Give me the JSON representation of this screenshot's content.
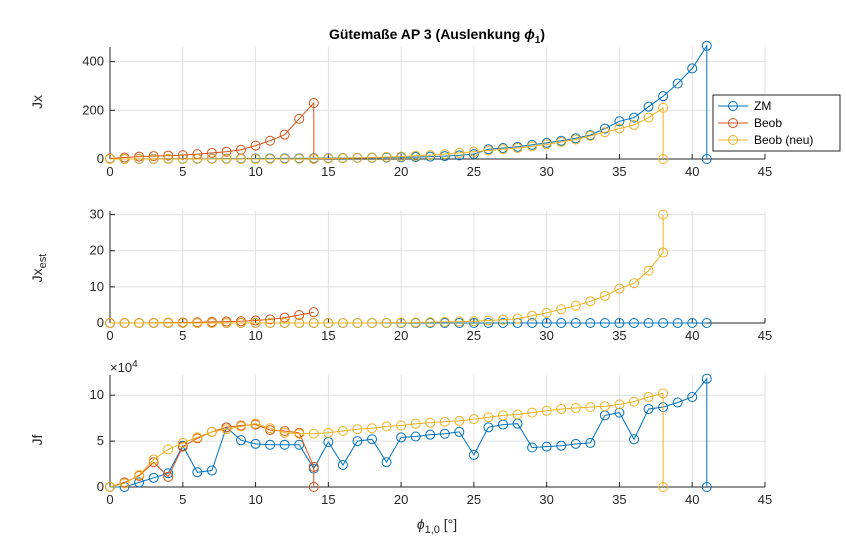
{
  "title_main": "Gütemaße AP 3 (Auslenkung ",
  "title_sym": "ϕ",
  "title_sub": "1",
  "title_end": ")",
  "chart_data": [
    {
      "type": "line",
      "ylabel": "Jx",
      "xlim": [
        0,
        45
      ],
      "ylim": [
        0,
        460
      ],
      "xticks": [
        0,
        5,
        10,
        15,
        20,
        25,
        30,
        35,
        40,
        45
      ],
      "yticks": [
        0,
        200,
        400
      ],
      "grid": true,
      "legend": {
        "position": "right",
        "entries": [
          "ZM",
          "Beob",
          "Beob (neu)"
        ]
      },
      "series": [
        {
          "name": "ZM",
          "color": "#0072BD",
          "x": [
            1,
            2,
            3,
            4,
            5,
            6,
            7,
            8,
            9,
            10,
            11,
            12,
            13,
            14,
            15,
            16,
            17,
            18,
            19,
            20,
            21,
            22,
            23,
            24,
            25,
            26,
            27,
            28,
            29,
            30,
            31,
            32,
            33,
            34,
            35,
            36,
            37,
            38,
            39,
            40,
            41,
            41
          ],
          "y": [
            0.2,
            0.3,
            0.5,
            0.7,
            1,
            1.2,
            1.4,
            1.6,
            1.8,
            2,
            2.2,
            2.5,
            2.8,
            3.2,
            3.5,
            4,
            4.5,
            5,
            6,
            7,
            8,
            10,
            12,
            15,
            20,
            40,
            45,
            50,
            58,
            66,
            75,
            85,
            98,
            125,
            155,
            170,
            215,
            258,
            310,
            372,
            465,
            0
          ]
        },
        {
          "name": "Beob",
          "color": "#D95319",
          "x": [
            0,
            1,
            2,
            3,
            4,
            5,
            6,
            7,
            8,
            9,
            10,
            11,
            12,
            13,
            14,
            14
          ],
          "y": [
            2,
            6,
            10,
            12,
            14,
            16,
            20,
            25,
            30,
            38,
            55,
            75,
            100,
            165,
            230,
            0
          ]
        },
        {
          "name": "Beob (neu)",
          "color": "#EDB120",
          "x": [
            0,
            1,
            2,
            3,
            4,
            5,
            6,
            7,
            8,
            9,
            10,
            11,
            12,
            13,
            14,
            15,
            16,
            17,
            18,
            19,
            20,
            21,
            22,
            23,
            24,
            25,
            26,
            27,
            28,
            29,
            30,
            31,
            32,
            33,
            34,
            35,
            36,
            37,
            38,
            38
          ],
          "y": [
            0,
            0,
            0,
            0,
            0,
            0,
            0,
            0,
            0,
            0,
            0,
            0,
            0,
            0.5,
            1,
            2,
            3,
            4,
            6,
            8,
            10,
            13,
            16,
            20,
            25,
            30,
            35,
            40,
            45,
            52,
            60,
            70,
            80,
            95,
            110,
            125,
            140,
            170,
            210,
            0
          ]
        }
      ]
    },
    {
      "type": "line",
      "ylabel": "Jx",
      "ylabel_sub": "est",
      "xlim": [
        0,
        45
      ],
      "ylim": [
        0,
        31
      ],
      "xticks": [
        0,
        5,
        10,
        15,
        20,
        25,
        30,
        35,
        40,
        45
      ],
      "yticks": [
        0,
        10,
        20,
        30
      ],
      "grid": true,
      "series": [
        {
          "name": "ZM",
          "color": "#0072BD",
          "x": [
            0,
            1,
            2,
            3,
            4,
            5,
            6,
            7,
            8,
            9,
            10,
            11,
            12,
            13,
            14,
            15,
            16,
            17,
            18,
            19,
            20,
            21,
            22,
            23,
            24,
            25,
            26,
            27,
            28,
            29,
            30,
            31,
            32,
            33,
            34,
            35,
            36,
            37,
            38,
            39,
            40,
            41
          ],
          "y": [
            0,
            0,
            0,
            0,
            0,
            0,
            0,
            0,
            0,
            0,
            0,
            0,
            0,
            0,
            0,
            0,
            0,
            0,
            0,
            0,
            0,
            0,
            0,
            0,
            0,
            0,
            0,
            0,
            0,
            0,
            0,
            0,
            0,
            0,
            0,
            0,
            0,
            0,
            0,
            0,
            0,
            0
          ]
        },
        {
          "name": "Beob",
          "color": "#D95319",
          "x": [
            0,
            1,
            2,
            3,
            4,
            5,
            6,
            7,
            8,
            9,
            10,
            11,
            12,
            13,
            14
          ],
          "y": [
            0,
            0,
            0,
            0.05,
            0.1,
            0.15,
            0.2,
            0.3,
            0.4,
            0.5,
            0.7,
            1,
            1.5,
            2.2,
            3
          ]
        },
        {
          "name": "Beob (neu)",
          "color": "#EDB120",
          "x": [
            0,
            1,
            2,
            3,
            4,
            5,
            6,
            7,
            8,
            9,
            10,
            11,
            12,
            13,
            14,
            15,
            16,
            17,
            18,
            19,
            20,
            21,
            22,
            23,
            24,
            25,
            26,
            27,
            28,
            29,
            30,
            31,
            32,
            33,
            34,
            35,
            36,
            37,
            38,
            38
          ],
          "y": [
            0,
            0,
            0,
            0,
            0,
            0,
            0,
            0,
            0,
            0,
            0,
            0,
            0,
            0,
            0,
            0,
            0,
            0,
            0,
            0.05,
            0.1,
            0.15,
            0.2,
            0.3,
            0.4,
            0.5,
            0.7,
            0.9,
            1.2,
            2,
            2.8,
            3.8,
            4.8,
            6,
            7.5,
            9.5,
            11,
            14.5,
            19.5,
            30
          ]
        }
      ]
    },
    {
      "type": "line",
      "ylabel": "Jf",
      "multiplier": "×10",
      "multiplier_exp": "4",
      "xlabel": "ϕ",
      "xlabel_sub": "1,0",
      "xlabel_unit": " [°]",
      "xlim": [
        0,
        45
      ],
      "ylim": [
        0,
        12.2
      ],
      "xticks": [
        0,
        5,
        10,
        15,
        20,
        25,
        30,
        35,
        40,
        45
      ],
      "yticks": [
        0,
        5,
        10
      ],
      "grid": true,
      "series": [
        {
          "name": "ZM",
          "color": "#0072BD",
          "x": [
            0,
            1,
            2,
            3,
            4,
            5,
            6,
            7,
            8,
            9,
            10,
            11,
            12,
            13,
            14,
            15,
            16,
            17,
            18,
            19,
            20,
            21,
            22,
            23,
            24,
            25,
            26,
            27,
            28,
            29,
            30,
            31,
            32,
            33,
            34,
            35,
            36,
            37,
            38,
            39,
            40,
            41,
            41
          ],
          "y": [
            0,
            0,
            0.5,
            1,
            1.5,
            4.5,
            1.6,
            1.8,
            6.5,
            5.1,
            4.7,
            4.6,
            4.6,
            4.6,
            2,
            4.9,
            2.4,
            5,
            5.2,
            2.7,
            5.4,
            5.5,
            5.7,
            5.8,
            6,
            3.5,
            6.5,
            6.8,
            6.9,
            4.3,
            4.4,
            4.5,
            4.7,
            4.8,
            7.8,
            8.1,
            5.2,
            8.5,
            8.7,
            9.2,
            9.8,
            11.8,
            0
          ]
        },
        {
          "name": "Beob",
          "color": "#D95319",
          "x": [
            0,
            1,
            2,
            3,
            4,
            5,
            6,
            7,
            8,
            9,
            10,
            11,
            12,
            13,
            14,
            14
          ],
          "y": [
            0,
            0.5,
            1.2,
            2.7,
            1.1,
            4.4,
            5.3,
            6,
            6.5,
            6.7,
            6.8,
            6.2,
            6.1,
            5.9,
            2.2,
            0
          ]
        },
        {
          "name": "Beob (neu)",
          "color": "#EDB120",
          "x": [
            0,
            1,
            2,
            3,
            4,
            5,
            6,
            7,
            8,
            9,
            10,
            11,
            12,
            13,
            14,
            15,
            16,
            17,
            18,
            19,
            20,
            21,
            22,
            23,
            24,
            25,
            26,
            27,
            28,
            29,
            30,
            31,
            32,
            33,
            34,
            35,
            36,
            37,
            38,
            38
          ],
          "y": [
            0,
            0.4,
            1.3,
            3,
            4.1,
            4.8,
            5.4,
            6,
            6.3,
            6.6,
            6.9,
            6.4,
            5.9,
            5.8,
            5.8,
            5.9,
            6.1,
            6.3,
            6.4,
            6.6,
            6.7,
            6.9,
            7,
            7.1,
            7.2,
            7.4,
            7.6,
            7.8,
            7.9,
            8.1,
            8.3,
            8.5,
            8.6,
            8.7,
            8.8,
            9,
            9.3,
            9.8,
            10.2,
            0
          ]
        }
      ]
    }
  ]
}
